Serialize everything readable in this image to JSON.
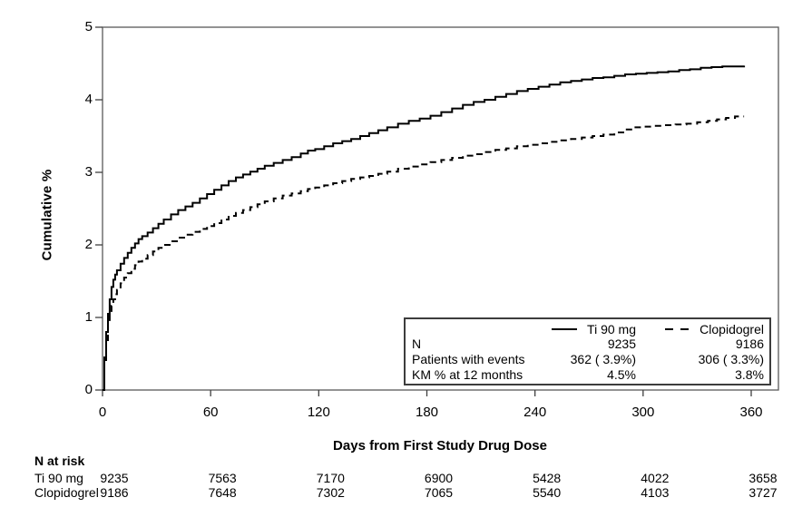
{
  "figure": {
    "y_axis_title": "Cumulative %",
    "x_axis_title": "Days from First Study Drug Dose"
  },
  "legend": {
    "series": [
      {
        "name": "Ti 90 mg",
        "line": "solid"
      },
      {
        "name": "Clopidogrel",
        "line": "dashed"
      }
    ],
    "rows": [
      {
        "label": "N",
        "ti": "9235",
        "clo": "9186"
      },
      {
        "label": "Patients with events",
        "ti": "362 ( 3.9%)",
        "clo": "306 ( 3.3%)"
      },
      {
        "label": "KM % at 12 months",
        "ti": "4.5%",
        "clo": "3.8%"
      }
    ]
  },
  "n_at_risk": {
    "title": "N at risk",
    "rows": [
      {
        "label": "Ti 90 mg",
        "values": [
          "9235",
          "7563",
          "7170",
          "6900",
          "5428",
          "4022",
          "3658"
        ]
      },
      {
        "label": "Clopidogrel",
        "values": [
          "9186",
          "7648",
          "7302",
          "7065",
          "5540",
          "4103",
          "3727"
        ]
      }
    ]
  },
  "chart_data": {
    "type": "line",
    "subtype": "kaplan-meier-cumulative-incidence",
    "title": "",
    "xlabel": "Days from First Study Drug Dose",
    "ylabel": "Cumulative %",
    "xlim": [
      0,
      375
    ],
    "ylim": [
      0,
      5
    ],
    "x_ticks": [
      0,
      60,
      120,
      180,
      240,
      300,
      360
    ],
    "y_ticks": [
      0,
      1,
      2,
      3,
      4,
      5
    ],
    "grid": false,
    "legend_position": "inside-lower-right",
    "step": "after",
    "line_color": "#000000",
    "axis_color": "#595959",
    "series": [
      {
        "name": "Ti 90 mg",
        "line": "solid",
        "n": 9235,
        "events": 362,
        "events_pct": 3.9,
        "km_12mo_pct": 4.5,
        "points": [
          [
            0,
            0
          ],
          [
            1,
            0.45
          ],
          [
            2,
            0.8
          ],
          [
            3,
            1.05
          ],
          [
            4,
            1.25
          ],
          [
            5,
            1.42
          ],
          [
            6,
            1.52
          ],
          [
            7,
            1.59
          ],
          [
            8,
            1.65
          ],
          [
            10,
            1.74
          ],
          [
            12,
            1.82
          ],
          [
            14,
            1.89
          ],
          [
            16,
            1.96
          ],
          [
            18,
            2.02
          ],
          [
            20,
            2.08
          ],
          [
            22,
            2.12
          ],
          [
            25,
            2.17
          ],
          [
            28,
            2.23
          ],
          [
            31,
            2.29
          ],
          [
            34,
            2.35
          ],
          [
            38,
            2.42
          ],
          [
            42,
            2.48
          ],
          [
            46,
            2.53
          ],
          [
            50,
            2.58
          ],
          [
            54,
            2.64
          ],
          [
            58,
            2.7
          ],
          [
            62,
            2.76
          ],
          [
            66,
            2.82
          ],
          [
            70,
            2.88
          ],
          [
            74,
            2.93
          ],
          [
            78,
            2.97
          ],
          [
            82,
            3.01
          ],
          [
            86,
            3.05
          ],
          [
            90,
            3.09
          ],
          [
            95,
            3.13
          ],
          [
            100,
            3.17
          ],
          [
            105,
            3.21
          ],
          [
            110,
            3.26
          ],
          [
            114,
            3.3
          ],
          [
            118,
            3.32
          ],
          [
            123,
            3.36
          ],
          [
            128,
            3.4
          ],
          [
            133,
            3.43
          ],
          [
            138,
            3.46
          ],
          [
            143,
            3.5
          ],
          [
            148,
            3.54
          ],
          [
            153,
            3.58
          ],
          [
            158,
            3.62
          ],
          [
            164,
            3.67
          ],
          [
            170,
            3.71
          ],
          [
            176,
            3.74
          ],
          [
            182,
            3.78
          ],
          [
            188,
            3.83
          ],
          [
            194,
            3.88
          ],
          [
            200,
            3.93
          ],
          [
            206,
            3.97
          ],
          [
            212,
            4.0
          ],
          [
            218,
            4.04
          ],
          [
            224,
            4.08
          ],
          [
            230,
            4.12
          ],
          [
            236,
            4.15
          ],
          [
            242,
            4.18
          ],
          [
            248,
            4.21
          ],
          [
            254,
            4.24
          ],
          [
            260,
            4.26
          ],
          [
            266,
            4.28
          ],
          [
            272,
            4.3
          ],
          [
            278,
            4.31
          ],
          [
            284,
            4.33
          ],
          [
            290,
            4.35
          ],
          [
            296,
            4.36
          ],
          [
            302,
            4.37
          ],
          [
            308,
            4.38
          ],
          [
            314,
            4.39
          ],
          [
            320,
            4.41
          ],
          [
            326,
            4.42
          ],
          [
            332,
            4.44
          ],
          [
            338,
            4.45
          ],
          [
            344,
            4.46
          ],
          [
            350,
            4.46
          ],
          [
            356,
            4.47
          ]
        ]
      },
      {
        "name": "Clopidogrel",
        "line": "dashed",
        "n": 9186,
        "events": 306,
        "events_pct": 3.3,
        "km_12mo_pct": 3.8,
        "points": [
          [
            0,
            0
          ],
          [
            1,
            0.35
          ],
          [
            2,
            0.65
          ],
          [
            3,
            0.9
          ],
          [
            4,
            1.05
          ],
          [
            5,
            1.16
          ],
          [
            6,
            1.25
          ],
          [
            7,
            1.32
          ],
          [
            8,
            1.38
          ],
          [
            10,
            1.47
          ],
          [
            12,
            1.55
          ],
          [
            14,
            1.61
          ],
          [
            16,
            1.67
          ],
          [
            18,
            1.72
          ],
          [
            20,
            1.77
          ],
          [
            22,
            1.81
          ],
          [
            25,
            1.86
          ],
          [
            28,
            1.91
          ],
          [
            31,
            1.96
          ],
          [
            34,
            2.0
          ],
          [
            38,
            2.05
          ],
          [
            42,
            2.1
          ],
          [
            46,
            2.14
          ],
          [
            50,
            2.18
          ],
          [
            54,
            2.22
          ],
          [
            58,
            2.26
          ],
          [
            62,
            2.3
          ],
          [
            66,
            2.35
          ],
          [
            70,
            2.4
          ],
          [
            74,
            2.44
          ],
          [
            78,
            2.48
          ],
          [
            82,
            2.52
          ],
          [
            86,
            2.56
          ],
          [
            90,
            2.6
          ],
          [
            95,
            2.64
          ],
          [
            100,
            2.68
          ],
          [
            105,
            2.71
          ],
          [
            110,
            2.74
          ],
          [
            114,
            2.77
          ],
          [
            118,
            2.79
          ],
          [
            123,
            2.82
          ],
          [
            128,
            2.85
          ],
          [
            133,
            2.88
          ],
          [
            138,
            2.91
          ],
          [
            143,
            2.93
          ],
          [
            148,
            2.95
          ],
          [
            153,
            2.98
          ],
          [
            158,
            3.01
          ],
          [
            164,
            3.05
          ],
          [
            170,
            3.08
          ],
          [
            176,
            3.11
          ],
          [
            182,
            3.14
          ],
          [
            188,
            3.17
          ],
          [
            194,
            3.2
          ],
          [
            200,
            3.23
          ],
          [
            206,
            3.25
          ],
          [
            212,
            3.28
          ],
          [
            218,
            3.31
          ],
          [
            224,
            3.33
          ],
          [
            230,
            3.36
          ],
          [
            236,
            3.38
          ],
          [
            242,
            3.4
          ],
          [
            248,
            3.42
          ],
          [
            254,
            3.44
          ],
          [
            260,
            3.46
          ],
          [
            266,
            3.48
          ],
          [
            272,
            3.5
          ],
          [
            278,
            3.52
          ],
          [
            284,
            3.55
          ],
          [
            289,
            3.59
          ],
          [
            294,
            3.62
          ],
          [
            300,
            3.63
          ],
          [
            306,
            3.64
          ],
          [
            312,
            3.65
          ],
          [
            318,
            3.66
          ],
          [
            324,
            3.67
          ],
          [
            330,
            3.69
          ],
          [
            336,
            3.71
          ],
          [
            341,
            3.73
          ],
          [
            346,
            3.75
          ],
          [
            351,
            3.77
          ],
          [
            356,
            3.77
          ]
        ]
      }
    ]
  }
}
